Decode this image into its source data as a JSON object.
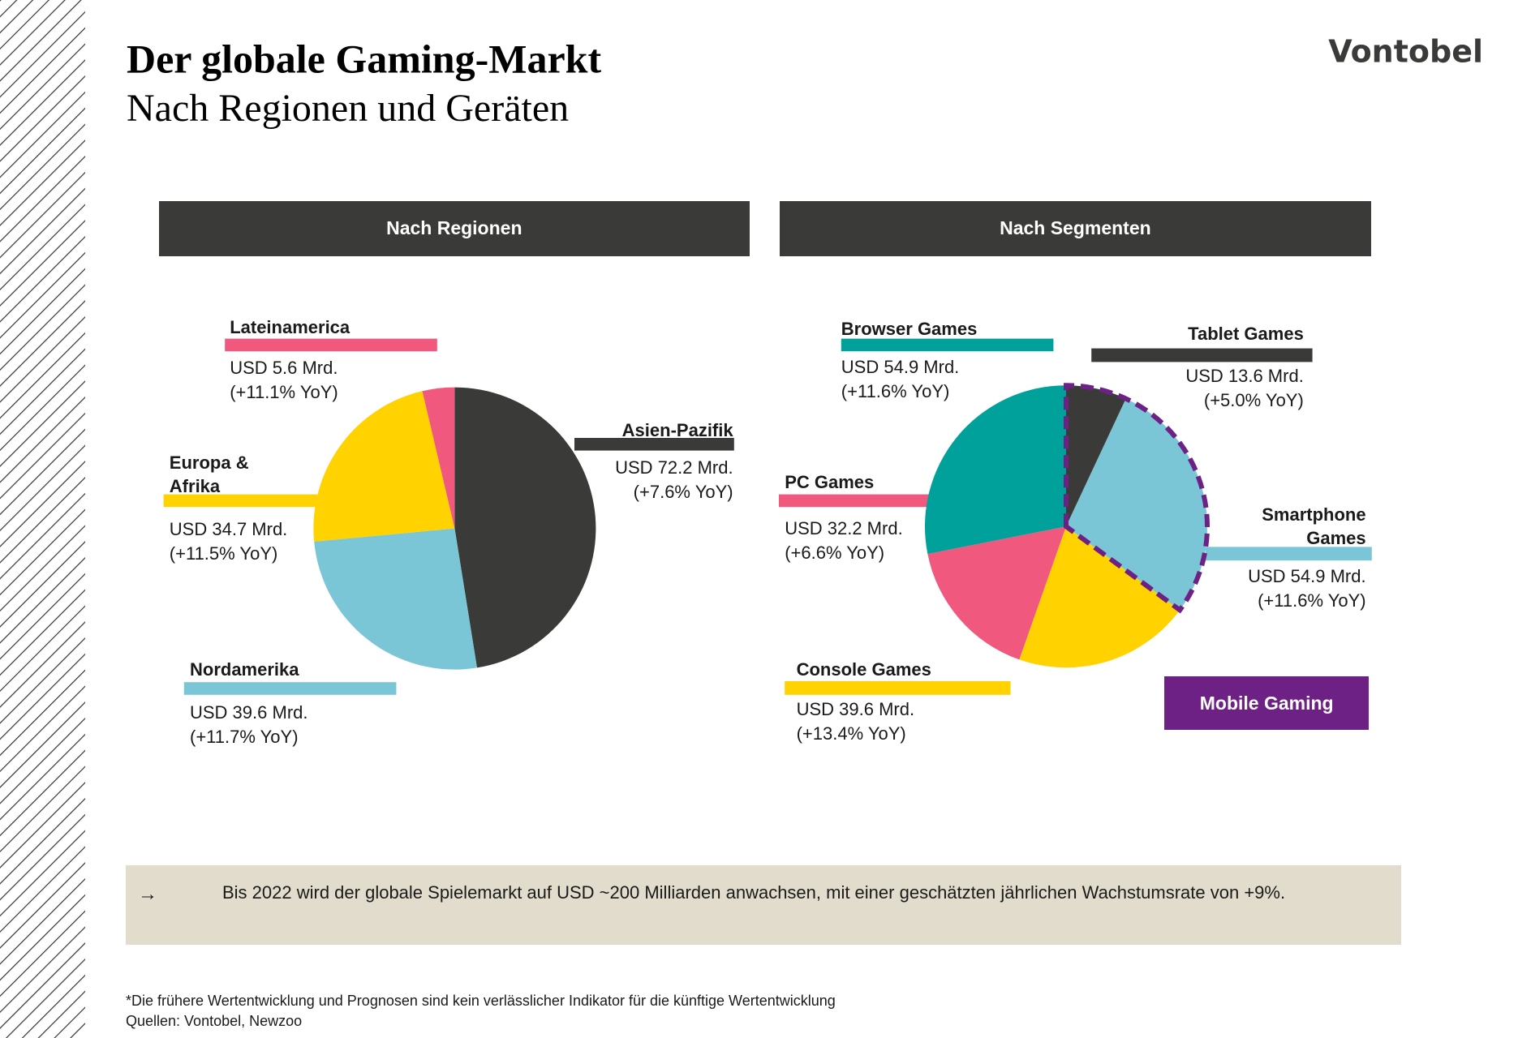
{
  "header": {
    "title": "Der globale Gaming-Markt",
    "subtitle": "Nach Regionen und Geräten",
    "logo": "Vontobel"
  },
  "chart_data": [
    {
      "type": "pie",
      "title": "Nach Regionen",
      "labels": [
        "Asien-Pazifik",
        "Nordamerika",
        "Europa & Afrika",
        "Lateinamerica"
      ],
      "values": [
        72.2,
        39.6,
        34.7,
        5.6
      ],
      "value_labels": [
        "USD 72.2 Mrd.",
        "USD 39.6 Mrd.",
        "USD 34.7 Mrd.",
        "USD 5.6 Mrd."
      ],
      "growth": [
        "(+7.6% YoY)",
        "(+11.7% YoY)",
        "(+11.5% YoY)",
        "(+11.1% YoY)"
      ],
      "colors": [
        "#3a3a38",
        "#7ac5d6",
        "#ffd200",
        "#f0587d"
      ]
    },
    {
      "type": "pie",
      "title": "Nach Segmenten",
      "labels": [
        "Tablet Games",
        "Smartphone Games",
        "Console Games",
        "PC Games",
        "Browser Games"
      ],
      "values": [
        13.6,
        54.9,
        39.6,
        32.2,
        54.9
      ],
      "value_labels": [
        "USD 13.6 Mrd.",
        "USD 54.9 Mrd.",
        "USD 39.6 Mrd.",
        "USD 32.2 Mrd.",
        "USD 54.9 Mrd."
      ],
      "growth": [
        "(+5.0% YoY)",
        "(+11.6% YoY)",
        "(+13.4% YoY)",
        "(+6.6% YoY)",
        "(+11.6% YoY)"
      ],
      "colors": [
        "#3a3a38",
        "#7ac5d6",
        "#ffd200",
        "#f0587d",
        "#00a19a"
      ],
      "highlight": {
        "label": "Mobile Gaming",
        "color": "#6e2185",
        "slices": [
          "Tablet Games",
          "Smartphone Games"
        ]
      }
    }
  ],
  "note": {
    "arrow": "→",
    "text": "Bis 2022 wird der globale Spielemarkt auf USD ~200 Milliarden anwachsen, mit einer geschätzten jährlichen Wachstumsrate von +9%."
  },
  "footer": [
    "*Die frühere Wertentwicklung und Prognosen sind kein verlässlicher Indikator für die künftige Wertentwicklung",
    "Quellen: Vontobel, Newzoo"
  ]
}
